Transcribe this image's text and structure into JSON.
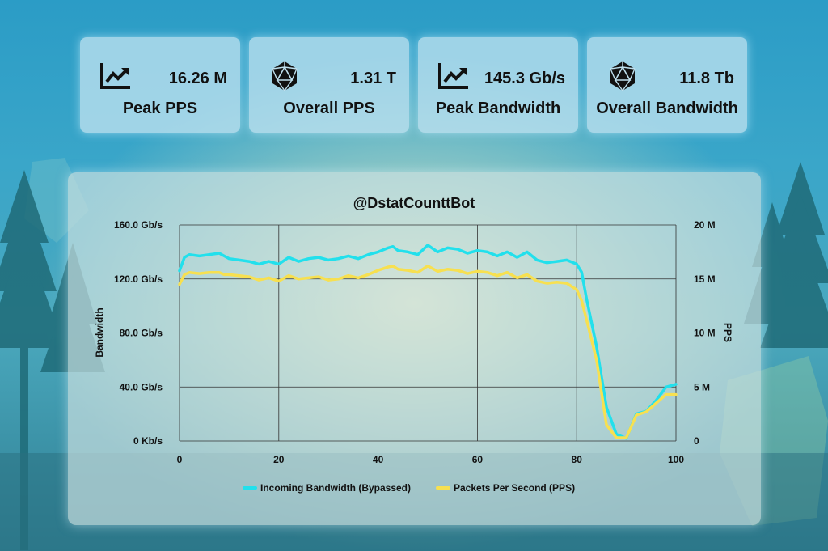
{
  "stats": [
    {
      "icon": "chart-line-icon",
      "value": "16.26 M",
      "label": "Peak PPS"
    },
    {
      "icon": "polyhedron-icon",
      "value": "1.31 T",
      "label": "Overall PPS"
    },
    {
      "icon": "chart-line-icon",
      "value": "145.3 Gb/s",
      "label": "Peak Bandwidth"
    },
    {
      "icon": "polyhedron-icon",
      "value": "11.8 Tb",
      "label": "Overall Bandwidth"
    }
  ],
  "chart_data": {
    "type": "line",
    "title": "@DstatCounttBot",
    "xlabel": "",
    "ylabel": "Bandwidth",
    "y2label": "PPS",
    "xlim": [
      0,
      100
    ],
    "ylim": [
      0,
      160
    ],
    "y2lim": [
      0,
      20
    ],
    "x_ticks": [
      "0",
      "20",
      "40",
      "60",
      "80",
      "100"
    ],
    "y_ticks": [
      "0 Kb/s",
      "40.0 Gb/s",
      "80.0 Gb/s",
      "120.0 Gb/s",
      "160.0 Gb/s"
    ],
    "y2_ticks": [
      "0",
      "5 M",
      "10 M",
      "15 M",
      "20 M"
    ],
    "grid": true,
    "legend_position": "bottom",
    "series": [
      {
        "name": "Incoming Bandwidth (Bypassed)",
        "axis": "left",
        "unit": "Gb/s",
        "color": "#22e0ec",
        "x": [
          0,
          1,
          2,
          4,
          6,
          8,
          9,
          10,
          12,
          14,
          16,
          18,
          20,
          22,
          24,
          26,
          28,
          30,
          32,
          34,
          36,
          38,
          40,
          42,
          43,
          44,
          46,
          48,
          50,
          52,
          54,
          56,
          58,
          60,
          62,
          64,
          66,
          68,
          70,
          72,
          74,
          76,
          78,
          80,
          81,
          82,
          84,
          86,
          88,
          90,
          92,
          94,
          96,
          98,
          100
        ],
        "values": [
          126,
          136,
          138,
          137,
          138,
          139,
          137,
          135,
          134,
          133,
          131,
          133,
          131,
          136,
          133,
          135,
          136,
          134,
          135,
          137,
          135,
          138,
          140,
          143,
          144,
          141,
          140,
          138,
          145,
          140,
          143,
          142,
          139,
          141,
          140,
          137,
          140,
          136,
          140,
          134,
          132,
          133,
          134,
          131,
          125,
          105,
          70,
          25,
          5,
          2,
          20,
          22,
          30,
          40,
          42
        ]
      },
      {
        "name": "Packets Per Second (PPS)",
        "axis": "right",
        "unit": "M",
        "color": "#f7e050",
        "x": [
          0,
          1,
          2,
          4,
          6,
          8,
          9,
          10,
          12,
          14,
          16,
          18,
          20,
          22,
          24,
          26,
          28,
          30,
          32,
          34,
          36,
          38,
          40,
          42,
          43,
          44,
          46,
          48,
          50,
          52,
          54,
          56,
          58,
          60,
          62,
          64,
          66,
          68,
          70,
          72,
          74,
          76,
          78,
          80,
          81,
          82,
          84,
          86,
          88,
          90,
          92,
          94,
          96,
          98,
          100
        ],
        "values": [
          14.5,
          15.4,
          15.6,
          15.5,
          15.6,
          15.6,
          15.4,
          15.4,
          15.3,
          15.2,
          14.9,
          15.1,
          14.8,
          15.3,
          15.0,
          15.1,
          15.2,
          14.9,
          15.0,
          15.3,
          15.1,
          15.4,
          15.8,
          16.1,
          16.2,
          15.9,
          15.8,
          15.6,
          16.2,
          15.7,
          15.9,
          15.8,
          15.5,
          15.7,
          15.6,
          15.3,
          15.6,
          15.1,
          15.4,
          14.8,
          14.6,
          14.7,
          14.6,
          14.0,
          13.0,
          11.2,
          7.5,
          1.5,
          0.3,
          0.3,
          2.4,
          2.7,
          3.5,
          4.3,
          4.3
        ]
      }
    ]
  }
}
